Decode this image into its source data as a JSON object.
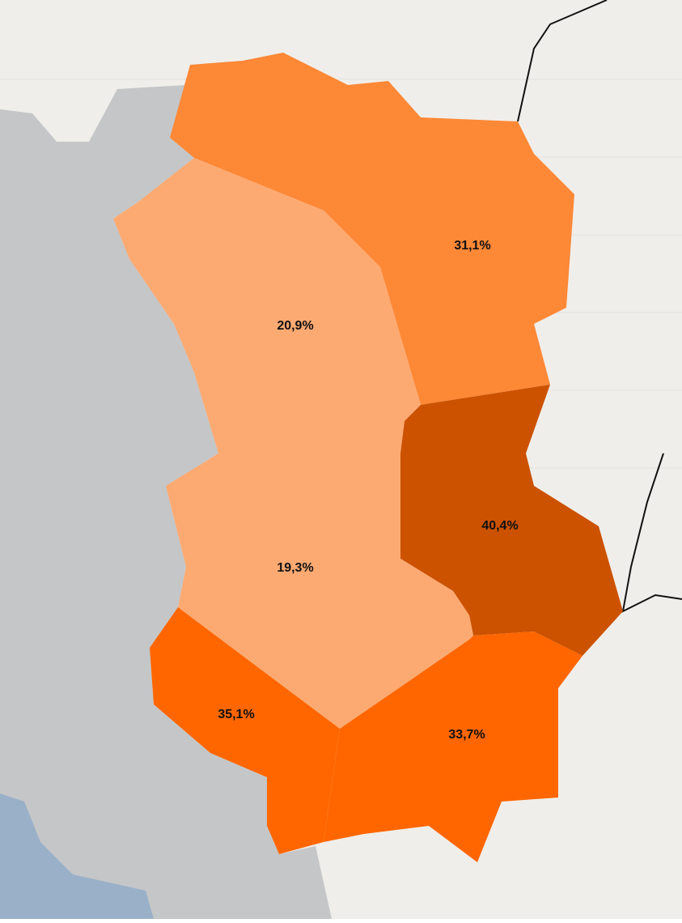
{
  "regions": [
    {
      "label": "31,1%",
      "color": "#fd8836"
    },
    {
      "label": "20,9%",
      "color": "#fdaa72"
    },
    {
      "label": "40,4%",
      "color": "#cc5200"
    },
    {
      "label": "19,3%",
      "color": "#fdaa72"
    },
    {
      "label": "35,1%",
      "color": "#ff6600"
    },
    {
      "label": "33,7%",
      "color": "#ff6600"
    }
  ]
}
